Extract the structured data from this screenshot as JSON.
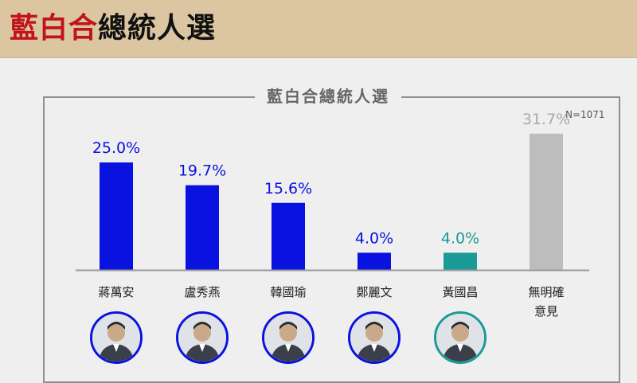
{
  "header": {
    "title_highlight": "藍白合",
    "title_rest": "總統人選"
  },
  "chart_title": "藍白合總統人選",
  "sample_size": "N=1071",
  "colors": {
    "header_bg": "#dcc6a1",
    "title_red": "#c0141b",
    "kmt_blue": "#0a12e0",
    "tpp_teal": "#1a9a96",
    "undecided_gray": "#bdbdbd"
  },
  "chart_data": {
    "type": "bar",
    "title": "藍白合總統人選",
    "categories": [
      "蔣萬安",
      "盧秀燕",
      "韓國瑜",
      "鄭麗文",
      "黃國昌",
      "無明確\n意見"
    ],
    "values": [
      25.0,
      19.7,
      15.6,
      4.0,
      4.0,
      31.7
    ],
    "value_labels": [
      "25.0%",
      "19.7%",
      "15.6%",
      "4.0%",
      "4.0%",
      "31.7%"
    ],
    "bar_colors": [
      "#0a12e0",
      "#0a12e0",
      "#0a12e0",
      "#0a12e0",
      "#1a9a96",
      "#bdbdbd"
    ],
    "label_colors": [
      "#0a12e0",
      "#0a12e0",
      "#0a12e0",
      "#0a12e0",
      "#1a9a96",
      "#a9a9a9"
    ],
    "ylim": [
      0,
      35
    ],
    "grid": false,
    "note": "N=1071"
  },
  "candidates": [
    {
      "name": "蔣萬安",
      "ring_color": "#0a12e0",
      "icon": "portrait-icon"
    },
    {
      "name": "盧秀燕",
      "ring_color": "#0a12e0",
      "icon": "portrait-icon"
    },
    {
      "name": "韓國瑜",
      "ring_color": "#0a12e0",
      "icon": "portrait-icon"
    },
    {
      "name": "鄭麗文",
      "ring_color": "#0a12e0",
      "icon": "portrait-icon"
    },
    {
      "name": "黃國昌",
      "ring_color": "#1a9a96",
      "icon": "portrait-icon"
    }
  ]
}
